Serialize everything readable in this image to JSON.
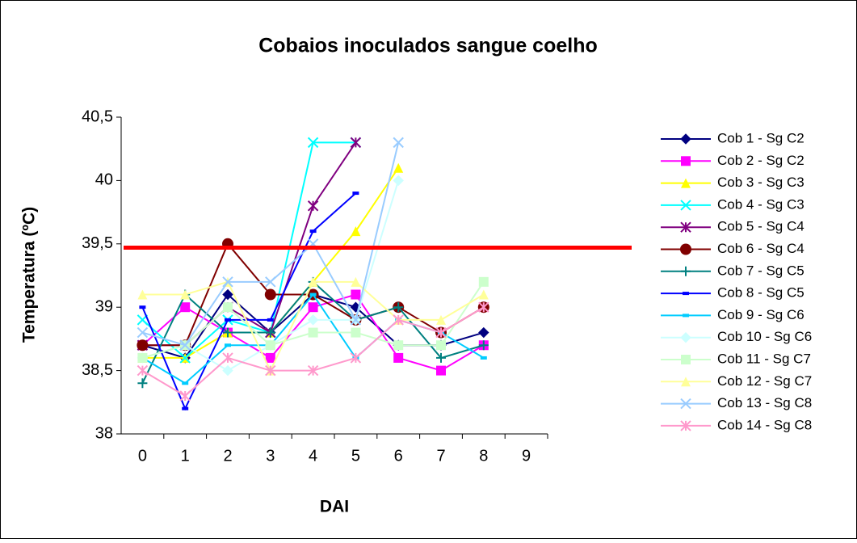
{
  "chart_data": {
    "type": "line",
    "title": "Cobaios inoculados sangue coelho",
    "x_label": "DAI",
    "y_label": "Temperatura (ºC)",
    "categories": [
      0,
      1,
      2,
      3,
      4,
      5,
      6,
      7,
      8,
      9
    ],
    "ylim": [
      38,
      40.5
    ],
    "yticks": [
      38,
      {
        "value": 38.5,
        "label": "38,5"
      },
      39,
      {
        "value": 39.5,
        "label": "39,5"
      },
      40,
      {
        "value": 40.5,
        "label": "40,5"
      }
    ],
    "legend": "right",
    "reference_line": {
      "value": 39.47,
      "color": "#ff0000"
    },
    "series": [
      {
        "name": "Cob 1 - Sg C2",
        "color": "#000080",
        "marker": "diamond",
        "values": [
          38.7,
          38.6,
          39.1,
          38.8,
          39.1,
          39.0,
          38.7,
          38.7,
          38.8,
          null
        ]
      },
      {
        "name": "Cob 2 - Sg C2",
        "color": "#ff00ff",
        "marker": "square",
        "values": [
          38.7,
          39.0,
          38.8,
          38.6,
          39.0,
          39.1,
          38.6,
          38.5,
          38.7,
          null
        ]
      },
      {
        "name": "Cob 3 - Sg C3",
        "color": "#ffff00",
        "marker": "triangle",
        "values": [
          38.6,
          38.6,
          38.8,
          38.8,
          39.2,
          39.6,
          40.1,
          null,
          null,
          null
        ]
      },
      {
        "name": "Cob 4 - Sg C3",
        "color": "#00ffff",
        "marker": "x",
        "values": [
          38.9,
          38.6,
          38.9,
          38.8,
          40.3,
          40.3,
          null,
          null,
          null,
          null
        ]
      },
      {
        "name": "Cob 5 - Sg C4",
        "color": "#800080",
        "marker": "star",
        "values": [
          38.7,
          38.7,
          39.0,
          38.8,
          39.8,
          40.3,
          null,
          null,
          null,
          null
        ]
      },
      {
        "name": "Cob 6 - Sg C4",
        "color": "#800000",
        "marker": "circle",
        "values": [
          38.7,
          38.7,
          39.5,
          39.1,
          39.1,
          38.9,
          39.0,
          38.8,
          39.0,
          null
        ]
      },
      {
        "name": "Cob 7 - Sg C5",
        "color": "#008080",
        "marker": "plus",
        "values": [
          38.4,
          39.1,
          38.8,
          38.8,
          39.2,
          38.9,
          39.0,
          38.6,
          38.7,
          null
        ]
      },
      {
        "name": "Cob 8 - Sg C5",
        "color": "#0000ff",
        "marker": "dash",
        "values": [
          39.0,
          38.2,
          38.9,
          38.9,
          39.6,
          39.9,
          null,
          null,
          null,
          null
        ]
      },
      {
        "name": "Cob 9 - Sg C6",
        "color": "#00ccff",
        "marker": "dash",
        "values": [
          38.6,
          38.4,
          38.7,
          38.7,
          39.1,
          38.6,
          38.9,
          38.8,
          38.6,
          null
        ]
      },
      {
        "name": "Cob 10 - Sg C6",
        "color": "#ccffff",
        "marker": "diamond",
        "values": [
          38.6,
          38.7,
          38.5,
          38.7,
          38.9,
          38.9,
          40.0,
          null,
          null,
          null
        ]
      },
      {
        "name": "Cob 11 - Sg C7",
        "color": "#ccffcc",
        "marker": "square",
        "values": [
          38.6,
          38.7,
          39.0,
          38.7,
          38.8,
          38.8,
          38.7,
          38.7,
          39.2,
          null
        ]
      },
      {
        "name": "Cob 12 - Sg C7",
        "color": "#ffff99",
        "marker": "triangle",
        "values": [
          39.1,
          39.1,
          39.2,
          38.5,
          39.2,
          39.2,
          38.9,
          38.9,
          39.1,
          null
        ]
      },
      {
        "name": "Cob 13 - Sg C8",
        "color": "#99ccff",
        "marker": "x",
        "values": [
          38.8,
          38.7,
          39.2,
          39.2,
          39.5,
          38.9,
          40.3,
          null,
          null,
          null
        ]
      },
      {
        "name": "Cob 14 - Sg C8",
        "color": "#ff99cc",
        "marker": "star",
        "values": [
          38.5,
          38.3,
          38.6,
          38.5,
          38.5,
          38.6,
          38.9,
          38.8,
          39.0,
          null
        ]
      }
    ]
  }
}
